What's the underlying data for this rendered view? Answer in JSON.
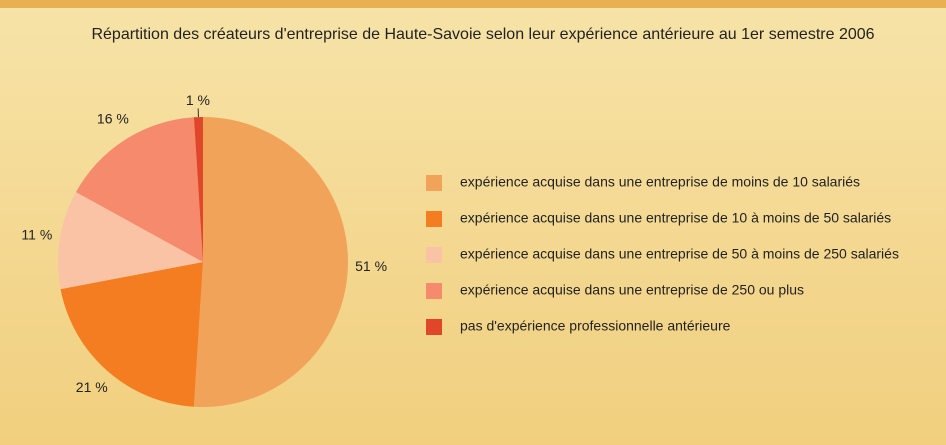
{
  "chart_data": {
    "type": "pie",
    "title": "Répartition des créateurs d'entreprise de Haute-Savoie selon leur expérience antérieure au 1er semestre 2006",
    "categories": [
      "expérience acquise dans une entreprise de moins de 10 salariés",
      "expérience acquise dans une entreprise de 10 à moins  de 50 salariés",
      "expérience acquise dans une entreprise de 50 à moins de 250 salariés",
      "expérience acquise dans une entreprise de 250 ou plus",
      "pas d'expérience professionnelle antérieure"
    ],
    "values": [
      51,
      21,
      11,
      16,
      1
    ],
    "value_labels": [
      "51 %",
      "21 %",
      "11 %",
      "16 %",
      "1 %"
    ],
    "colors": [
      "#f2a35a",
      "#f47d22",
      "#fac3a5",
      "#f58b6c",
      "#e0462a"
    ]
  }
}
